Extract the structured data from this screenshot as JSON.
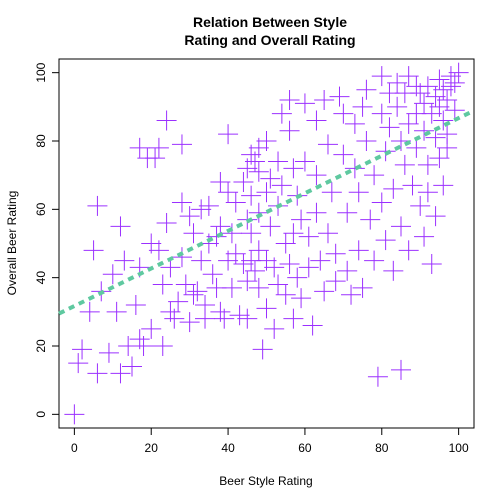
{
  "chart_data": {
    "type": "scatter",
    "title_lines": [
      "Relation Between Style",
      "Rating and Overall Rating"
    ],
    "xlabel": "Beer Style Rating",
    "ylabel": "Overall Beer Rating",
    "xlim": [
      -4,
      104
    ],
    "ylim": [
      -4,
      104
    ],
    "xticks": [
      0,
      20,
      40,
      60,
      80,
      100
    ],
    "yticks": [
      0,
      20,
      40,
      60,
      80,
      100
    ],
    "grid": false,
    "point_color": "#9B30FF",
    "line_color": "#5FC9A0",
    "trend_line": {
      "intercept": 31.7,
      "slope": 0.55,
      "x_range": [
        -4,
        104
      ]
    },
    "points": [
      [
        0,
        0
      ],
      [
        1,
        15
      ],
      [
        2,
        19
      ],
      [
        4,
        30
      ],
      [
        5,
        48
      ],
      [
        6,
        61
      ],
      [
        6,
        12
      ],
      [
        7,
        36
      ],
      [
        9,
        18
      ],
      [
        10,
        41
      ],
      [
        11,
        30
      ],
      [
        12,
        12
      ],
      [
        12,
        55
      ],
      [
        13,
        45
      ],
      [
        14,
        20
      ],
      [
        15,
        14
      ],
      [
        16,
        32
      ],
      [
        17,
        78
      ],
      [
        17,
        43
      ],
      [
        17,
        22
      ],
      [
        18,
        20
      ],
      [
        19,
        75
      ],
      [
        20,
        50
      ],
      [
        20,
        25
      ],
      [
        21,
        75
      ],
      [
        22,
        78
      ],
      [
        22,
        48
      ],
      [
        23,
        38
      ],
      [
        23,
        20
      ],
      [
        24,
        86
      ],
      [
        24,
        56
      ],
      [
        25,
        43
      ],
      [
        25,
        30
      ],
      [
        26,
        28
      ],
      [
        27,
        33
      ],
      [
        28,
        79
      ],
      [
        28,
        62
      ],
      [
        28,
        46
      ],
      [
        29,
        38
      ],
      [
        30,
        27
      ],
      [
        30,
        58
      ],
      [
        31,
        53
      ],
      [
        31,
        35
      ],
      [
        32,
        36
      ],
      [
        33,
        60
      ],
      [
        33,
        45
      ],
      [
        34,
        32
      ],
      [
        34,
        28
      ],
      [
        35,
        61
      ],
      [
        35,
        50
      ],
      [
        36,
        41
      ],
      [
        37,
        37
      ],
      [
        37,
        52
      ],
      [
        38,
        68
      ],
      [
        38,
        55
      ],
      [
        38,
        30
      ],
      [
        39,
        28
      ],
      [
        40,
        82
      ],
      [
        40,
        65
      ],
      [
        40,
        45
      ],
      [
        41,
        53
      ],
      [
        41,
        37
      ],
      [
        42,
        62
      ],
      [
        42,
        47
      ],
      [
        43,
        29
      ],
      [
        44,
        68
      ],
      [
        44,
        44
      ],
      [
        45,
        72
      ],
      [
        45,
        57
      ],
      [
        45,
        39
      ],
      [
        45,
        28
      ],
      [
        46,
        76
      ],
      [
        46,
        64
      ],
      [
        46,
        53
      ],
      [
        46,
        45
      ],
      [
        47,
        74
      ],
      [
        47,
        42
      ],
      [
        48,
        78
      ],
      [
        48,
        71
      ],
      [
        48,
        59
      ],
      [
        48,
        48
      ],
      [
        48,
        37
      ],
      [
        49,
        19
      ],
      [
        50,
        80
      ],
      [
        50,
        65
      ],
      [
        50,
        45
      ],
      [
        50,
        31
      ],
      [
        51,
        69
      ],
      [
        51,
        55
      ],
      [
        52,
        43
      ],
      [
        52,
        25
      ],
      [
        53,
        74
      ],
      [
        53,
        61
      ],
      [
        53,
        38
      ],
      [
        54,
        88
      ],
      [
        54,
        67
      ],
      [
        55,
        50
      ],
      [
        55,
        35
      ],
      [
        56,
        92
      ],
      [
        56,
        83
      ],
      [
        56,
        44
      ],
      [
        57,
        72
      ],
      [
        57,
        53
      ],
      [
        57,
        28
      ],
      [
        58,
        64
      ],
      [
        58,
        40
      ],
      [
        59,
        57
      ],
      [
        59,
        34
      ],
      [
        60,
        91
      ],
      [
        60,
        74
      ],
      [
        61,
        52
      ],
      [
        61,
        43
      ],
      [
        62,
        26
      ],
      [
        63,
        86
      ],
      [
        63,
        70
      ],
      [
        63,
        59
      ],
      [
        64,
        45
      ],
      [
        65,
        36
      ],
      [
        65,
        92
      ],
      [
        66,
        79
      ],
      [
        66,
        53
      ],
      [
        67,
        65
      ],
      [
        68,
        47
      ],
      [
        68,
        39
      ],
      [
        69,
        93
      ],
      [
        70,
        88
      ],
      [
        70,
        76
      ],
      [
        71,
        59
      ],
      [
        71,
        42
      ],
      [
        72,
        35
      ],
      [
        73,
        85
      ],
      [
        73,
        72
      ],
      [
        74,
        65
      ],
      [
        74,
        48
      ],
      [
        75,
        90
      ],
      [
        75,
        37
      ],
      [
        76,
        95
      ],
      [
        76,
        80
      ],
      [
        77,
        57
      ],
      [
        78,
        70
      ],
      [
        78,
        45
      ],
      [
        79,
        11
      ],
      [
        80,
        99
      ],
      [
        80,
        88
      ],
      [
        80,
        62
      ],
      [
        81,
        77
      ],
      [
        81,
        51
      ],
      [
        82,
        94
      ],
      [
        82,
        84
      ],
      [
        83,
        66
      ],
      [
        83,
        42
      ],
      [
        84,
        97
      ],
      [
        84,
        90
      ],
      [
        85,
        80
      ],
      [
        85,
        13
      ],
      [
        85,
        55
      ],
      [
        86,
        94
      ],
      [
        86,
        73
      ],
      [
        87,
        99
      ],
      [
        87,
        85
      ],
      [
        87,
        48
      ],
      [
        88,
        67
      ],
      [
        89,
        96
      ],
      [
        89,
        88
      ],
      [
        89,
        78
      ],
      [
        90,
        94
      ],
      [
        90,
        61
      ],
      [
        91,
        91
      ],
      [
        91,
        83
      ],
      [
        91,
        52
      ],
      [
        92,
        96
      ],
      [
        92,
        73
      ],
      [
        92,
        65
      ],
      [
        93,
        88
      ],
      [
        93,
        44
      ],
      [
        94,
        93
      ],
      [
        94,
        81
      ],
      [
        94,
        58
      ],
      [
        95,
        98
      ],
      [
        95,
        90
      ],
      [
        95,
        75
      ],
      [
        96,
        95
      ],
      [
        96,
        86
      ],
      [
        96,
        67
      ],
      [
        97,
        92
      ],
      [
        97,
        82
      ],
      [
        98,
        99
      ],
      [
        98,
        96
      ],
      [
        99,
        97
      ],
      [
        100,
        100
      ],
      [
        99,
        89
      ],
      [
        97,
        78
      ]
    ]
  }
}
